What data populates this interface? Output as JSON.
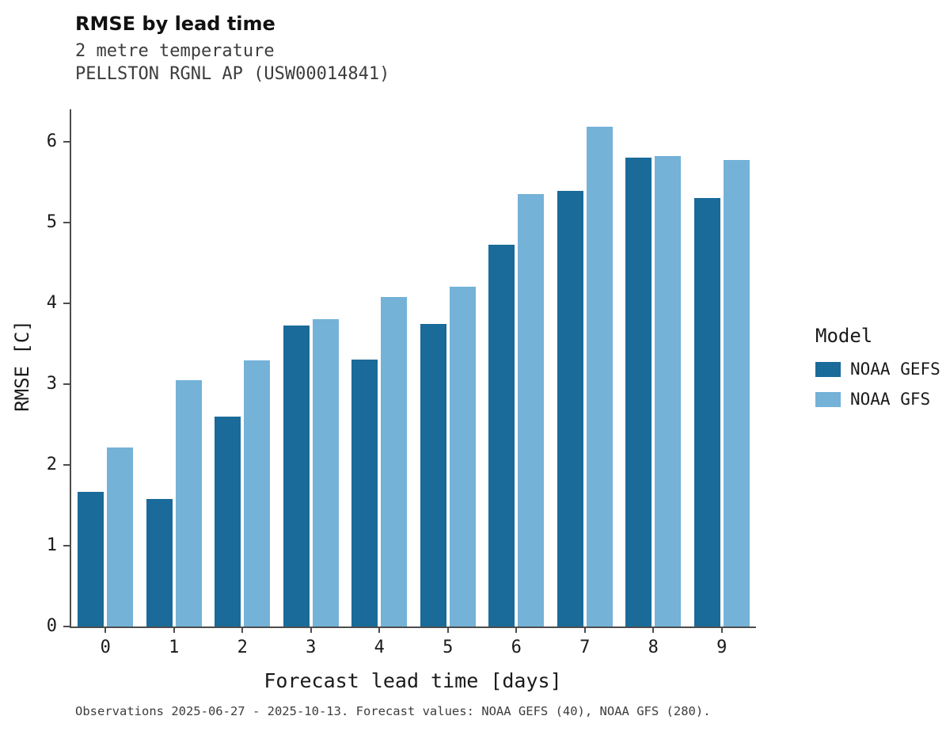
{
  "chart_data": {
    "type": "bar",
    "title": "RMSE by lead time",
    "subtitle": "2 metre temperature",
    "subtitle2": "PELLSTON RGNL AP (USW00014841)",
    "xlabel": "Forecast lead time [days]",
    "ylabel": "RMSE [C]",
    "categories": [
      "0",
      "1",
      "2",
      "3",
      "4",
      "5",
      "6",
      "7",
      "8",
      "9"
    ],
    "series": [
      {
        "name": "NOAA GEFS",
        "color": "#1a6b99",
        "values": [
          1.67,
          1.58,
          2.6,
          3.72,
          3.3,
          3.74,
          4.72,
          5.39,
          5.8,
          5.3
        ]
      },
      {
        "name": "NOAA GFS",
        "color": "#74b2d8",
        "values": [
          2.22,
          3.05,
          3.29,
          3.8,
          4.08,
          4.2,
          5.35,
          6.18,
          5.82,
          5.77
        ]
      }
    ],
    "ylim": [
      0,
      6.4
    ],
    "yticks": [
      0,
      1,
      2,
      3,
      4,
      5,
      6
    ],
    "grid": false,
    "legend_title": "Model",
    "legend_position": "right",
    "caption": "Observations 2025-06-27 - 2025-10-13. Forecast values: NOAA GEFS (40), NOAA GFS (280)."
  }
}
